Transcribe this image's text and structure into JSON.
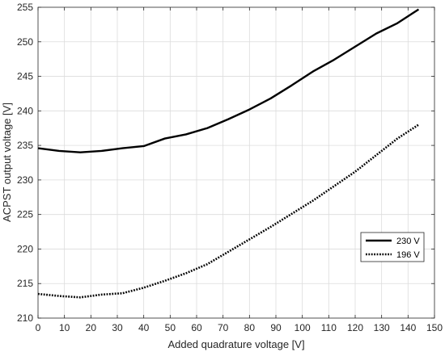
{
  "chart_data": {
    "type": "line",
    "xlabel": "Added quadrature voltage [V]",
    "ylabel": "ACPST output voltage [V]",
    "xlim": [
      0,
      150
    ],
    "ylim": [
      210,
      255
    ],
    "xticks": [
      0,
      10,
      20,
      30,
      40,
      50,
      60,
      70,
      80,
      90,
      100,
      110,
      120,
      130,
      140,
      150
    ],
    "yticks": [
      210,
      215,
      220,
      225,
      230,
      235,
      240,
      245,
      250,
      255
    ],
    "grid": true,
    "legend_position": "lower-right",
    "series": [
      {
        "name": "230 V",
        "style": "solid",
        "color": "#000000",
        "x": [
          0,
          8,
          16,
          24,
          32,
          40,
          48,
          56,
          64,
          72,
          80,
          88,
          96,
          104,
          112,
          120,
          128,
          136,
          144
        ],
        "y": [
          234.6,
          234.2,
          234.0,
          234.2,
          234.6,
          234.9,
          236.0,
          236.6,
          237.5,
          238.8,
          240.2,
          241.8,
          243.7,
          245.7,
          247.4,
          249.3,
          251.2,
          252.7,
          254.7
        ]
      },
      {
        "name": "196 V",
        "style": "dotted",
        "color": "#000000",
        "x": [
          0,
          8,
          16,
          24,
          32,
          40,
          48,
          56,
          64,
          72,
          80,
          88,
          96,
          104,
          112,
          120,
          128,
          136,
          144
        ],
        "y": [
          213.5,
          213.2,
          213.0,
          213.4,
          213.6,
          214.4,
          215.4,
          216.5,
          217.8,
          219.6,
          221.4,
          223.2,
          225.1,
          227.0,
          229.1,
          231.2,
          233.6,
          236.0,
          238.0
        ]
      }
    ]
  }
}
